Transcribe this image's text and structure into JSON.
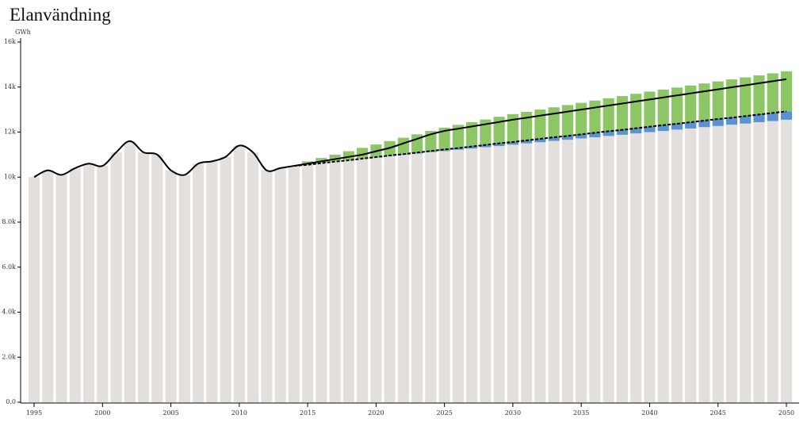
{
  "chart_data": {
    "type": "bar",
    "title": "Elanvändning",
    "y_unit": "GWh",
    "x": [
      1995,
      1996,
      1997,
      1998,
      1999,
      2000,
      2001,
      2002,
      2003,
      2004,
      2005,
      2006,
      2007,
      2008,
      2009,
      2010,
      2011,
      2012,
      2013,
      2014,
      2015,
      2016,
      2017,
      2018,
      2019,
      2020,
      2021,
      2022,
      2023,
      2024,
      2025,
      2026,
      2027,
      2028,
      2029,
      2030,
      2031,
      2032,
      2033,
      2034,
      2035,
      2036,
      2037,
      2038,
      2039,
      2040,
      2041,
      2042,
      2043,
      2044,
      2045,
      2046,
      2047,
      2048,
      2049,
      2050
    ],
    "xlim": [
      1994.5,
      2050.5
    ],
    "xticks": [
      1995,
      2000,
      2005,
      2010,
      2015,
      2020,
      2025,
      2030,
      2035,
      2040,
      2045,
      2050
    ],
    "ylim": [
      0,
      16000
    ],
    "yticks": [
      {
        "value": 0,
        "label": "0.0"
      },
      {
        "value": 2000,
        "label": "2.0k"
      },
      {
        "value": 4000,
        "label": "4.0k"
      },
      {
        "value": 6000,
        "label": "6.0k"
      },
      {
        "value": 8000,
        "label": "8.0k"
      },
      {
        "value": 10000,
        "label": "10k"
      },
      {
        "value": 12000,
        "label": "12k"
      },
      {
        "value": 14000,
        "label": "14k"
      },
      {
        "value": 16000,
        "label": "16k"
      }
    ],
    "stacked": true,
    "series": [
      {
        "color": "#e3dfdc",
        "values": [
          10000,
          10300,
          10100,
          10400,
          10600,
          10500,
          11100,
          11600,
          11100,
          11000,
          10300,
          10100,
          10600,
          10700,
          10900,
          11400,
          11100,
          10300,
          10400,
          10500,
          10610,
          10660,
          10720,
          10770,
          10830,
          10880,
          10940,
          11000,
          11050,
          11110,
          11160,
          11220,
          11270,
          11330,
          11380,
          11440,
          11500,
          11550,
          11610,
          11660,
          11720,
          11770,
          11830,
          11880,
          11940,
          12000,
          12050,
          12110,
          12160,
          12220,
          12270,
          12330,
          12380,
          12440,
          12490,
          12550
        ]
      },
      {
        "color": "#5b92d0",
        "values": [
          null,
          null,
          null,
          null,
          null,
          null,
          null,
          null,
          null,
          null,
          null,
          null,
          null,
          null,
          null,
          null,
          null,
          null,
          null,
          null,
          null,
          null,
          null,
          null,
          null,
          10,
          25,
          35,
          50,
          60,
          70,
          85,
          95,
          110,
          120,
          130,
          145,
          155,
          170,
          180,
          190,
          205,
          215,
          230,
          240,
          250,
          265,
          275,
          290,
          300,
          310,
          325,
          335,
          350,
          360,
          370
        ]
      },
      {
        "color": "#8cc665",
        "values": [
          null,
          null,
          null,
          null,
          null,
          null,
          null,
          null,
          null,
          null,
          null,
          null,
          null,
          null,
          null,
          null,
          null,
          null,
          null,
          null,
          90,
          190,
          280,
          380,
          470,
          560,
          635,
          715,
          800,
          880,
          970,
          1015,
          1075,
          1120,
          1180,
          1230,
          1255,
          1295,
          1320,
          1360,
          1390,
          1425,
          1455,
          1490,
          1520,
          1550,
          1575,
          1595,
          1620,
          1640,
          1670,
          1685,
          1715,
          1730,
          1760,
          1780
        ]
      }
    ],
    "lines": [
      {
        "color": "#000000",
        "dashed": false,
        "values": [
          10000,
          10300,
          10100,
          10400,
          10600,
          10500,
          11100,
          11600,
          11100,
          11000,
          10300,
          10100,
          10600,
          10700,
          10900,
          11400,
          11100,
          10300,
          10400,
          10500,
          10600,
          10700,
          10800,
          10900,
          11000,
          11150,
          11300,
          11500,
          11700,
          11900,
          12050,
          12150,
          12250,
          12350,
          12450,
          12550,
          12640,
          12730,
          12820,
          12910,
          13000,
          13090,
          13180,
          13270,
          13360,
          13450,
          13540,
          13630,
          13720,
          13810,
          13900,
          13990,
          14080,
          14170,
          14260,
          14350
        ]
      },
      {
        "color": "#000000",
        "dashed": true,
        "values": [
          null,
          null,
          null,
          null,
          null,
          null,
          null,
          null,
          null,
          null,
          null,
          null,
          null,
          null,
          null,
          null,
          null,
          null,
          null,
          10500,
          10550,
          10620,
          10690,
          10750,
          10820,
          10890,
          10960,
          11020,
          11090,
          11160,
          11230,
          11290,
          11360,
          11430,
          11500,
          11560,
          11630,
          11700,
          11770,
          11830,
          11900,
          11970,
          12040,
          12100,
          12170,
          12240,
          12310,
          12370,
          12440,
          12510,
          12580,
          12640,
          12710,
          12780,
          12850,
          12920
        ]
      }
    ]
  }
}
